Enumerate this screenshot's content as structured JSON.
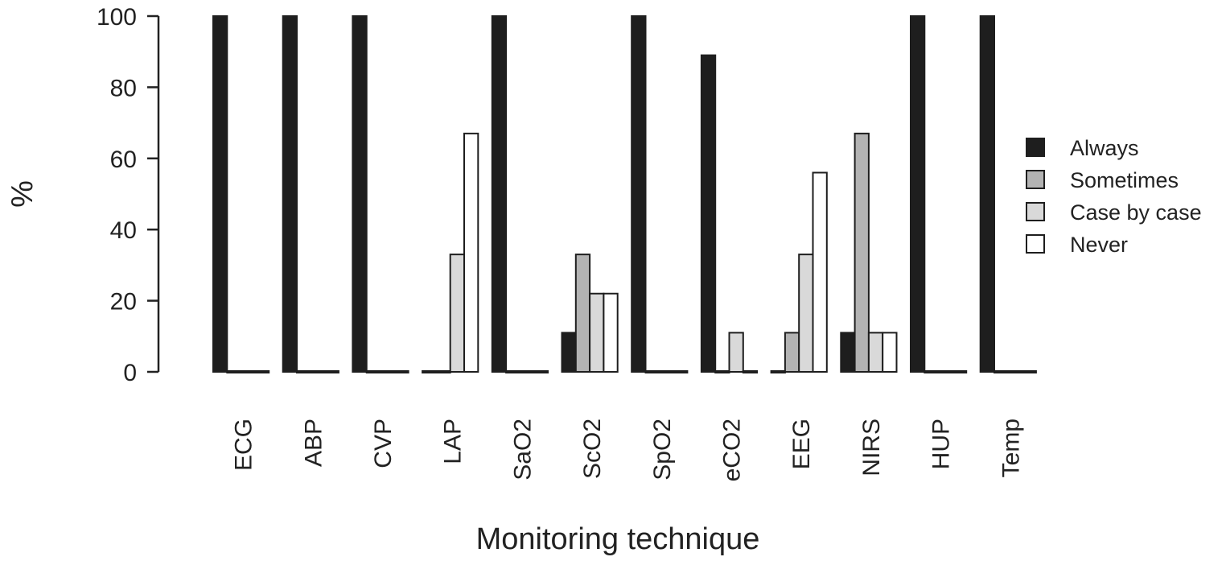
{
  "chart_data": {
    "type": "bar",
    "title": "",
    "xlabel": "Monitoring technique",
    "ylabel": "%",
    "ylim": [
      0,
      100
    ],
    "yticks": [
      "0",
      "20",
      "40",
      "60",
      "80",
      "100"
    ],
    "grid": false,
    "legend_position": "right",
    "categories": [
      "ECG",
      "ABP",
      "CVP",
      "LAP",
      "SaO2",
      "ScO2",
      "SpO2",
      "eCO2",
      "EEG",
      "NIRS",
      "HUP",
      "Temp"
    ],
    "series": [
      {
        "name": "Always",
        "color": "#1e1e1e",
        "values": [
          100,
          100,
          100,
          0,
          100,
          11,
          100,
          89,
          0,
          11,
          100,
          100
        ]
      },
      {
        "name": "Sometimes",
        "color": "#b3b3b3",
        "values": [
          0,
          0,
          0,
          0,
          0,
          33,
          0,
          0,
          11,
          67,
          0,
          0
        ]
      },
      {
        "name": "Case by case",
        "color": "#d9d9d9",
        "values": [
          0,
          0,
          0,
          33,
          0,
          22,
          0,
          11,
          33,
          11,
          0,
          0
        ]
      },
      {
        "name": "Never",
        "color": "#ffffff",
        "values": [
          0,
          0,
          0,
          67,
          0,
          22,
          0,
          0,
          56,
          11,
          0,
          0
        ]
      }
    ]
  }
}
